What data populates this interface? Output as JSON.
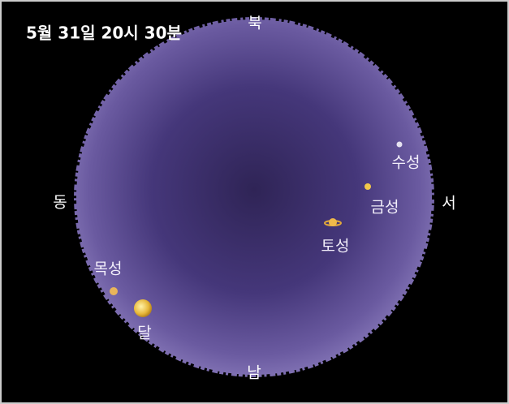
{
  "title": "5월 31일 20시 30분",
  "directions": {
    "north": "북",
    "south": "남",
    "east": "동",
    "west": "서"
  },
  "objects": [
    {
      "label": "수성"
    },
    {
      "label": "금성"
    },
    {
      "label": "토성"
    },
    {
      "label": "목성"
    },
    {
      "label": "달"
    }
  ]
}
